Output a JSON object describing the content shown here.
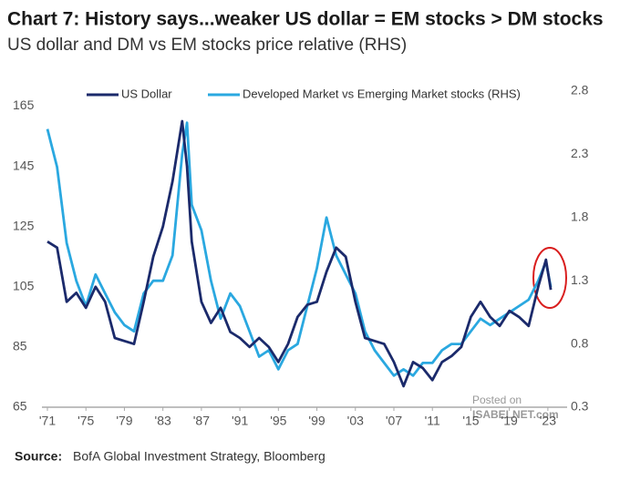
{
  "chart_data": {
    "type": "line",
    "title": "Chart 7: History says...weaker US dollar = EM stocks > DM stocks",
    "subtitle": "US dollar and DM vs EM stocks price relative (RHS)",
    "source_label": "Source:",
    "source": "BofA Global Investment Strategy, Bloomberg",
    "watermark": [
      "Posted on",
      "ISABELNET.com"
    ],
    "x": [
      1971,
      1972,
      1973,
      1974,
      1975,
      1976,
      1977,
      1978,
      1979,
      1980,
      1981,
      1982,
      1983,
      1984,
      1985,
      1985.5,
      1986,
      1987,
      1988,
      1989,
      1990,
      1991,
      1992,
      1993,
      1994,
      1995,
      1996,
      1997,
      1998,
      1999,
      2000,
      2001,
      2002,
      2003,
      2004,
      2005,
      2006,
      2007,
      2008,
      2009,
      2010,
      2011,
      2012,
      2013,
      2014,
      2015,
      2016,
      2017,
      2018,
      2019,
      2020,
      2021,
      2022,
      2022.8,
      2023.3
    ],
    "series": [
      {
        "name": "US Dollar",
        "color": "#1b2a6b",
        "axis": "y",
        "values": [
          120,
          118,
          100,
          103,
          98,
          105,
          100,
          88,
          87,
          86,
          100,
          115,
          125,
          140,
          160,
          145,
          120,
          100,
          93,
          98,
          90,
          88,
          85,
          88,
          85,
          80,
          86,
          95,
          99,
          100,
          110,
          118,
          115,
          100,
          88,
          87,
          86,
          80,
          72,
          80,
          78,
          74,
          80,
          82,
          85,
          95,
          100,
          95,
          92,
          97,
          95,
          92,
          105,
          114,
          104
        ]
      },
      {
        "name": "Developed Market vs Emerging Market stocks (RHS)",
        "color": "#2aa8e0",
        "axis": "y2",
        "values": [
          2.5,
          2.2,
          1.6,
          1.3,
          1.1,
          1.35,
          1.2,
          1.05,
          0.95,
          0.9,
          1.2,
          1.3,
          1.3,
          1.5,
          2.3,
          2.55,
          1.9,
          1.7,
          1.3,
          1.0,
          1.2,
          1.1,
          0.9,
          0.7,
          0.75,
          0.6,
          0.75,
          0.8,
          1.1,
          1.4,
          1.8,
          1.5,
          1.35,
          1.2,
          0.9,
          0.75,
          0.65,
          0.55,
          0.6,
          0.55,
          0.65,
          0.65,
          0.75,
          0.8,
          0.8,
          0.9,
          1.0,
          0.95,
          1.0,
          1.05,
          1.1,
          1.15,
          1.3,
          1.45,
          1.25
        ]
      }
    ],
    "xlim": [
      1971,
      2025
    ],
    "xticks": [
      {
        "value": 1971,
        "label": "'71"
      },
      {
        "value": 1975,
        "label": "'75"
      },
      {
        "value": 1979,
        "label": "'79"
      },
      {
        "value": 1983,
        "label": "'83"
      },
      {
        "value": 1987,
        "label": "'87"
      },
      {
        "value": 1991,
        "label": "'91"
      },
      {
        "value": 1995,
        "label": "'95"
      },
      {
        "value": 1999,
        "label": "'99"
      },
      {
        "value": 2003,
        "label": "'03"
      },
      {
        "value": 2007,
        "label": "'07"
      },
      {
        "value": 2011,
        "label": "'11"
      },
      {
        "value": 2015,
        "label": "'15"
      },
      {
        "value": 2019,
        "label": "'19"
      },
      {
        "value": 2023,
        "label": "'23"
      }
    ],
    "ylim": [
      65,
      170
    ],
    "yticks": [
      65,
      85,
      105,
      125,
      145,
      165
    ],
    "y2lim": [
      0.3,
      2.8
    ],
    "y2ticks": [
      0.3,
      0.8,
      1.3,
      1.8,
      2.3,
      2.8
    ],
    "grid": false
  }
}
